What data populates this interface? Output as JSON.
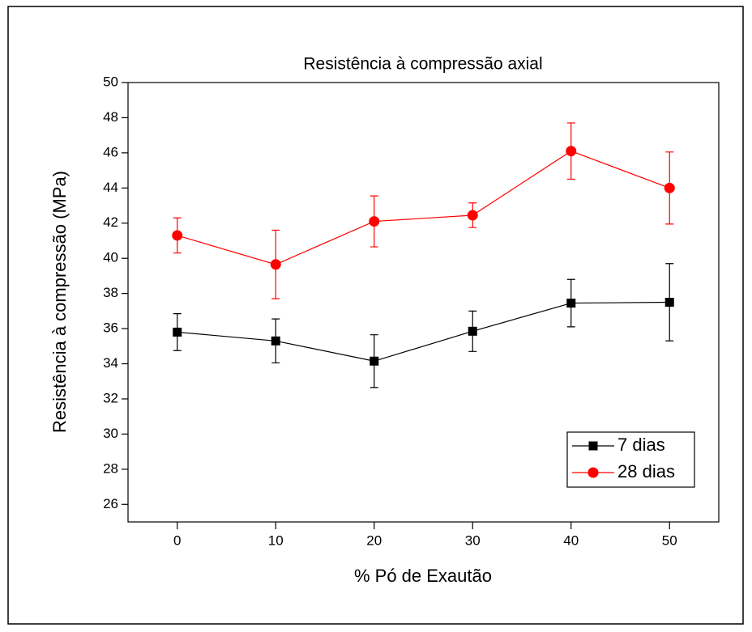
{
  "chart_data": {
    "type": "line",
    "title": "Resistência à compressão axial",
    "x_label": "% Pó de Exautão",
    "y_label": "Resistência à compressão (MPa)",
    "x": [
      0,
      10,
      20,
      30,
      40,
      50
    ],
    "series": [
      {
        "name": "7 dias",
        "color": "#000000",
        "marker": "square",
        "values": [
          35.8,
          35.3,
          34.15,
          35.85,
          37.45,
          37.5
        ],
        "errors": [
          1.05,
          1.25,
          1.5,
          1.15,
          1.35,
          2.2
        ]
      },
      {
        "name": "28 dias",
        "color": "#ff0000",
        "marker": "circle",
        "values": [
          41.3,
          39.65,
          42.1,
          42.45,
          46.1,
          44.0
        ],
        "errors": [
          1.0,
          1.95,
          1.45,
          0.7,
          1.6,
          2.05
        ]
      }
    ],
    "xlim": [
      -5,
      55
    ],
    "xticks": [
      0,
      10,
      20,
      30,
      40,
      50
    ],
    "ylim": [
      25,
      50
    ],
    "yticks": [
      26,
      28,
      30,
      32,
      34,
      36,
      38,
      40,
      42,
      44,
      46,
      48,
      50
    ],
    "grid": false,
    "legend": "lower right"
  }
}
